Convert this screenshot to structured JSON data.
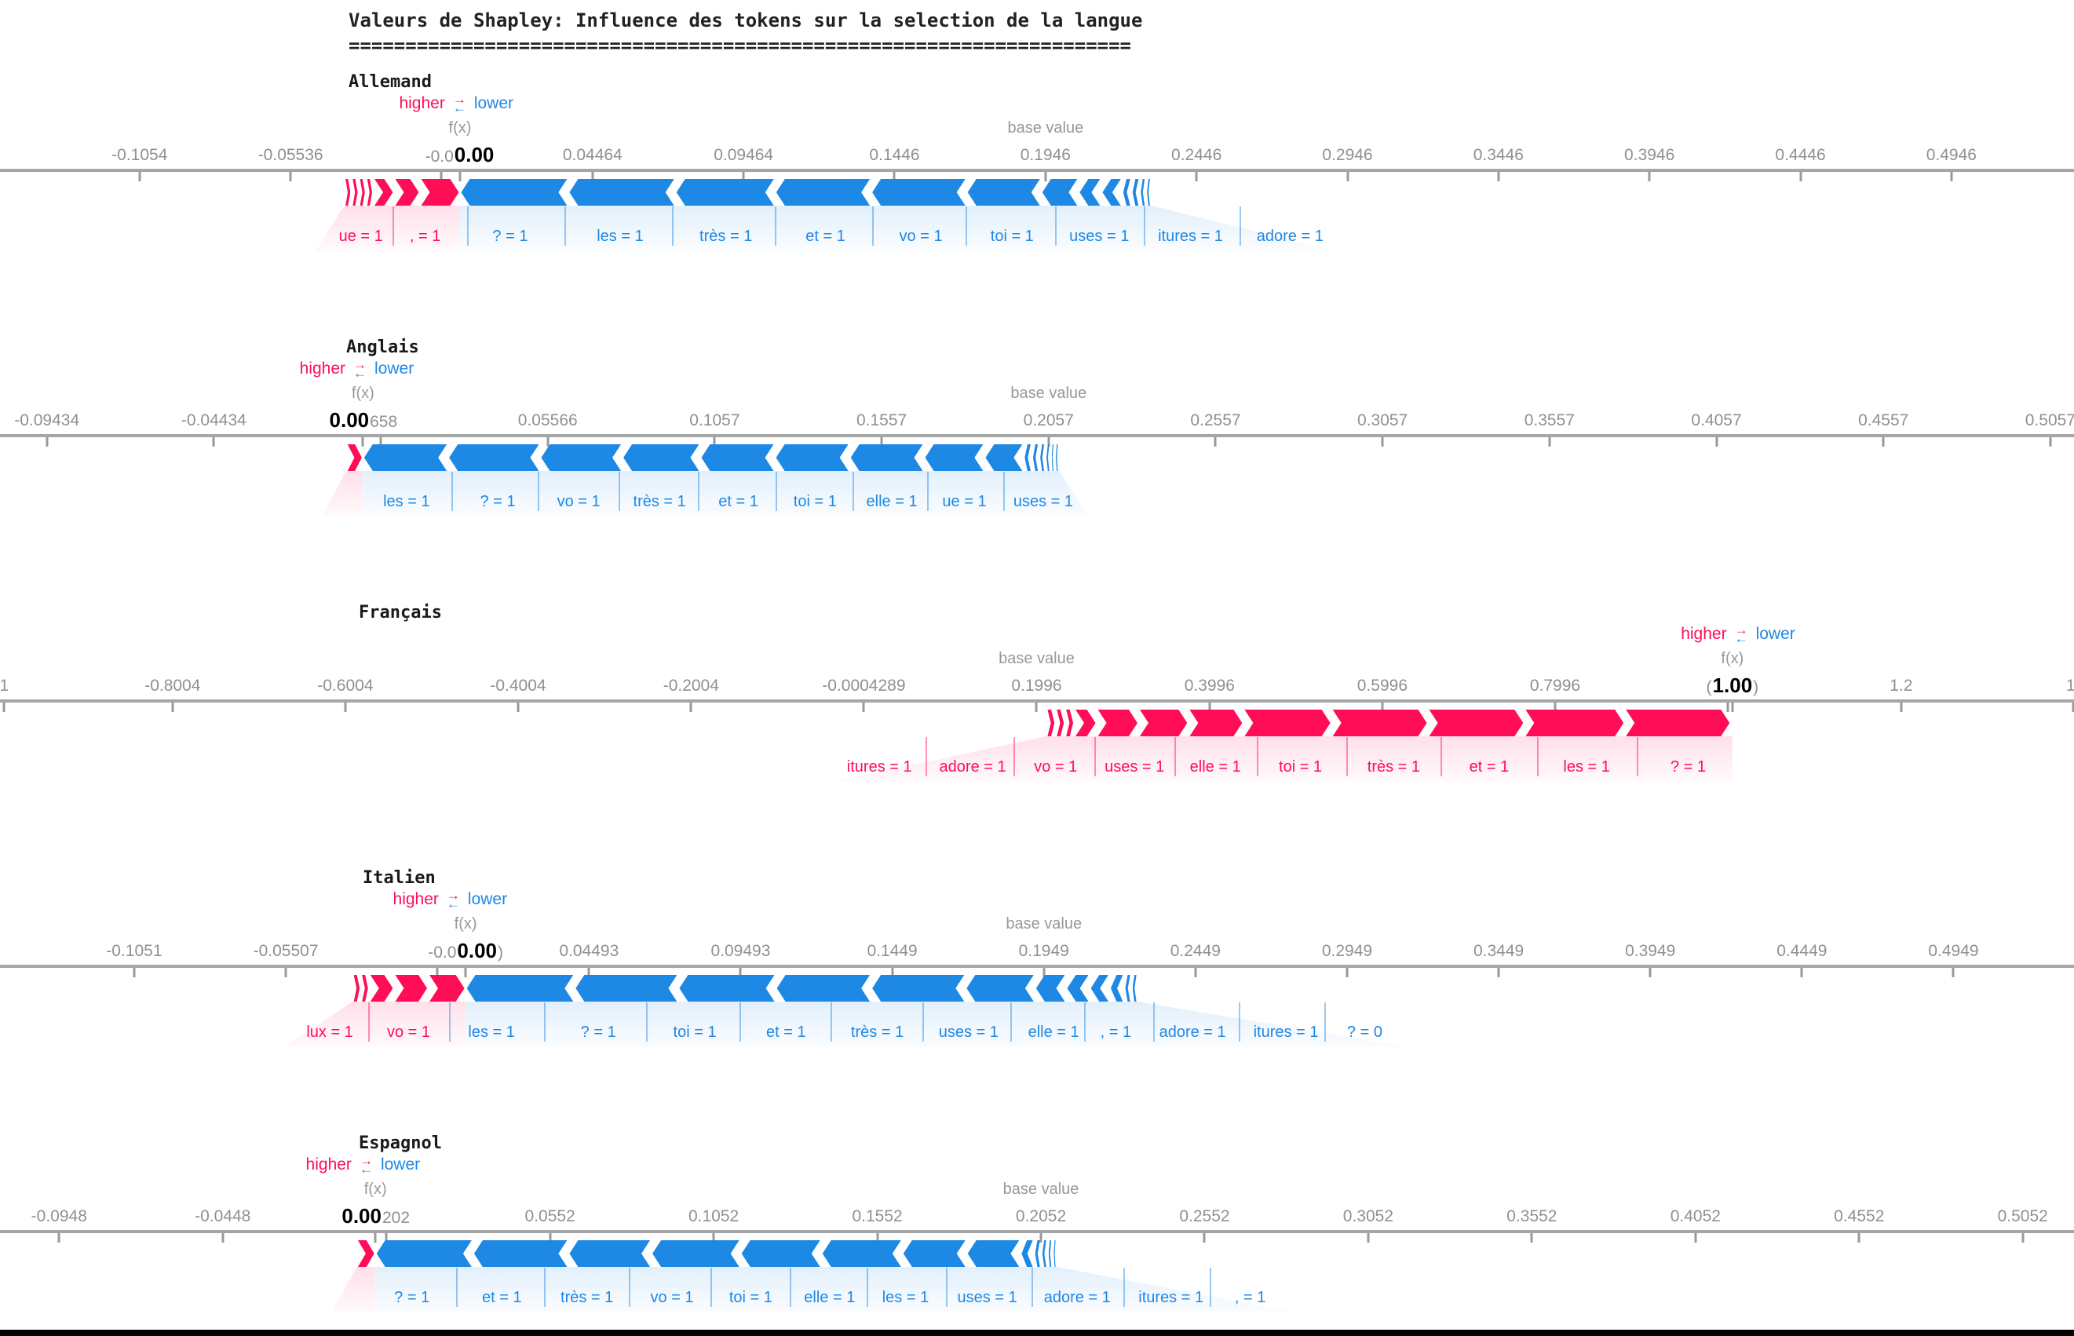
{
  "header": {
    "title": "Valeurs de Shapley: Influence des tokens sur la selection de la langue",
    "underline": "====================================================================="
  },
  "labels": {
    "fx": "f(x)",
    "base_value": "base value"
  },
  "legend": {
    "higher": "higher",
    "lower": "lower"
  },
  "icons": {
    "swap_arrows": {
      "right": "→",
      "left": "←"
    }
  },
  "colors": {
    "pink": "#ff0d57",
    "blue": "#1e88e5",
    "axis": "#a6a6a6",
    "tick_text": "#909090"
  },
  "chart_data": [
    {
      "type": "force-plot",
      "title": "Allemand",
      "legend_pos": 0.22,
      "fx": {
        "pos": 0.2218,
        "left": "-0.0",
        "bold": "0.00",
        "right": ""
      },
      "base_pos": 0.5041,
      "ticks": [
        {
          "pos": 0.0673,
          "label": "-0.1054"
        },
        {
          "pos": 0.1401,
          "label": "-0.05536"
        },
        {
          "pos": 0.2129,
          "label": ""
        },
        {
          "pos": 0.2857,
          "label": "0.04464"
        },
        {
          "pos": 0.3585,
          "label": "0.09464"
        },
        {
          "pos": 0.4313,
          "label": "0.1446"
        },
        {
          "pos": 0.5041,
          "label": "0.1946"
        },
        {
          "pos": 0.5769,
          "label": "0.2446"
        },
        {
          "pos": 0.6497,
          "label": "0.2946"
        },
        {
          "pos": 0.7225,
          "label": "0.3446"
        },
        {
          "pos": 0.7953,
          "label": "0.3946"
        },
        {
          "pos": 0.8681,
          "label": "0.4446"
        },
        {
          "pos": 0.9409,
          "label": "0.4946"
        }
      ],
      "pink_bounds": [
        0.166,
        0.1695,
        0.173,
        0.1765,
        0.18,
        0.19,
        0.2025,
        0.2218
      ],
      "blue_bounds": [
        0.2218,
        0.274,
        0.3256,
        0.3737,
        0.42,
        0.466,
        0.502,
        0.52,
        0.531,
        0.541,
        0.5455,
        0.5495,
        0.5525,
        0.555
      ],
      "feature_labels": [
        {
          "text": "ue = 1",
          "pos": 0.174,
          "color": "pink"
        },
        {
          "text": ", = 1",
          "pos": 0.205,
          "color": "pink"
        },
        {
          "text": "? = 1",
          "pos": 0.246,
          "color": "blue"
        },
        {
          "text": "les = 1",
          "pos": 0.299,
          "color": "blue"
        },
        {
          "text": "très = 1",
          "pos": 0.35,
          "color": "blue"
        },
        {
          "text": "et = 1",
          "pos": 0.398,
          "color": "blue"
        },
        {
          "text": "vo = 1",
          "pos": 0.444,
          "color": "blue"
        },
        {
          "text": "toi = 1",
          "pos": 0.488,
          "color": "blue"
        },
        {
          "text": "uses = 1",
          "pos": 0.53,
          "color": "blue"
        },
        {
          "text": "itures = 1",
          "pos": 0.574,
          "color": "blue"
        },
        {
          "text": "adore = 1",
          "pos": 0.622,
          "color": "blue"
        }
      ]
    },
    {
      "type": "force-plot",
      "title": "Anglais",
      "legend_pos": 0.172,
      "fx": {
        "pos": 0.175,
        "left": "",
        "bold": "0.00",
        "right": "658"
      },
      "base_pos": 0.5056,
      "ticks": [
        {
          "pos": 0.0226,
          "label": "-0.09434"
        },
        {
          "pos": 0.1031,
          "label": "-0.04434"
        },
        {
          "pos": 0.1836,
          "label": ""
        },
        {
          "pos": 0.2641,
          "label": "0.05566"
        },
        {
          "pos": 0.3446,
          "label": "0.1057"
        },
        {
          "pos": 0.4251,
          "label": "0.1557"
        },
        {
          "pos": 0.5056,
          "label": "0.2057"
        },
        {
          "pos": 0.5861,
          "label": "0.2557"
        },
        {
          "pos": 0.6666,
          "label": "0.3057"
        },
        {
          "pos": 0.7471,
          "label": "0.3557"
        },
        {
          "pos": 0.8276,
          "label": "0.4057"
        },
        {
          "pos": 0.9081,
          "label": "0.4557"
        },
        {
          "pos": 0.9886,
          "label": "0.5057"
        }
      ],
      "pink_bounds": [
        0.167,
        0.175
      ],
      "blue_bounds": [
        0.175,
        0.216,
        0.2604,
        0.3,
        0.3376,
        0.3736,
        0.4096,
        0.4455,
        0.4746,
        0.4935,
        0.4975,
        0.501,
        0.504,
        0.5065,
        0.5085,
        0.5106
      ],
      "feature_labels": [
        {
          "text": "les = 1",
          "pos": 0.196,
          "color": "blue"
        },
        {
          "text": "? = 1",
          "pos": 0.24,
          "color": "blue"
        },
        {
          "text": "vo = 1",
          "pos": 0.279,
          "color": "blue"
        },
        {
          "text": "très = 1",
          "pos": 0.318,
          "color": "blue"
        },
        {
          "text": "et = 1",
          "pos": 0.356,
          "color": "blue"
        },
        {
          "text": "toi = 1",
          "pos": 0.393,
          "color": "blue"
        },
        {
          "text": "elle = 1",
          "pos": 0.43,
          "color": "blue"
        },
        {
          "text": "ue = 1",
          "pos": 0.465,
          "color": "blue"
        },
        {
          "text": "uses = 1",
          "pos": 0.503,
          "color": "blue"
        }
      ]
    },
    {
      "type": "force-plot",
      "title": "Français",
      "legend_pos": 0.838,
      "fx": {
        "pos": 0.8353,
        "left": "(",
        "bold": "1.00",
        "right": ")"
      },
      "base_pos": 0.4998,
      "ticks": [
        {
          "pos": 0.002,
          "label": "1"
        },
        {
          "pos": 0.0832,
          "label": "-0.8004"
        },
        {
          "pos": 0.1665,
          "label": "-0.6004"
        },
        {
          "pos": 0.2498,
          "label": "-0.4004"
        },
        {
          "pos": 0.3332,
          "label": "-0.2004"
        },
        {
          "pos": 0.4165,
          "label": "-0.0004289"
        },
        {
          "pos": 0.4998,
          "label": "0.1996"
        },
        {
          "pos": 0.5832,
          "label": "0.3996"
        },
        {
          "pos": 0.6665,
          "label": "0.5996"
        },
        {
          "pos": 0.7498,
          "label": "0.7996"
        },
        {
          "pos": 0.8332,
          "label": ""
        },
        {
          "pos": 0.9167,
          "label": "1.2"
        },
        {
          "pos": 0.9995,
          "label": "1."
        }
      ],
      "pink_bounds": [
        0.5045,
        0.509,
        0.5135,
        0.518,
        0.5288,
        0.549,
        0.573,
        0.5995,
        0.642,
        0.6885,
        0.735,
        0.7834,
        0.8345
      ],
      "blue_bounds": [],
      "feature_labels": [
        {
          "text": "itures = 1",
          "pos": 0.424,
          "color": "pink"
        },
        {
          "text": "adore = 1",
          "pos": 0.469,
          "color": "pink"
        },
        {
          "text": "vo = 1",
          "pos": 0.509,
          "color": "pink"
        },
        {
          "text": "uses = 1",
          "pos": 0.547,
          "color": "pink"
        },
        {
          "text": "elle = 1",
          "pos": 0.586,
          "color": "pink"
        },
        {
          "text": "toi = 1",
          "pos": 0.627,
          "color": "pink"
        },
        {
          "text": "très = 1",
          "pos": 0.672,
          "color": "pink"
        },
        {
          "text": "et = 1",
          "pos": 0.718,
          "color": "pink"
        },
        {
          "text": "les = 1",
          "pos": 0.765,
          "color": "pink"
        },
        {
          "text": "? = 1",
          "pos": 0.814,
          "color": "pink"
        }
      ]
    },
    {
      "type": "force-plot",
      "title": "Italien",
      "legend_pos": 0.217,
      "fx": {
        "pos": 0.2245,
        "left": "-0.0",
        "bold": "0.00",
        "right": ")"
      },
      "base_pos": 0.5033,
      "ticks": [
        {
          "pos": 0.0647,
          "label": "-0.1051"
        },
        {
          "pos": 0.1378,
          "label": "-0.05507"
        },
        {
          "pos": 0.2109,
          "label": ""
        },
        {
          "pos": 0.284,
          "label": "0.04493"
        },
        {
          "pos": 0.3571,
          "label": "0.09493"
        },
        {
          "pos": 0.4302,
          "label": "0.1449"
        },
        {
          "pos": 0.5033,
          "label": "0.1949"
        },
        {
          "pos": 0.5764,
          "label": "0.2449"
        },
        {
          "pos": 0.6495,
          "label": "0.2949"
        },
        {
          "pos": 0.7226,
          "label": "0.3449"
        },
        {
          "pos": 0.7957,
          "label": "0.3949"
        },
        {
          "pos": 0.8688,
          "label": "0.4449"
        },
        {
          "pos": 0.9419,
          "label": "0.4949"
        }
      ],
      "pink_bounds": [
        0.17,
        0.174,
        0.178,
        0.19,
        0.2065,
        0.2245
      ],
      "blue_bounds": [
        0.2245,
        0.277,
        0.327,
        0.374,
        0.42,
        0.4655,
        0.499,
        0.514,
        0.5254,
        0.535,
        0.542,
        0.5455,
        0.5485
      ],
      "feature_labels": [
        {
          "text": "lux = 1",
          "pos": 0.159,
          "color": "pink"
        },
        {
          "text": "vo = 1",
          "pos": 0.197,
          "color": "pink"
        },
        {
          "text": "les = 1",
          "pos": 0.237,
          "color": "blue"
        },
        {
          "text": "? = 1",
          "pos": 0.2885,
          "color": "blue"
        },
        {
          "text": "toi = 1",
          "pos": 0.335,
          "color": "blue"
        },
        {
          "text": "et = 1",
          "pos": 0.379,
          "color": "blue"
        },
        {
          "text": "très = 1",
          "pos": 0.423,
          "color": "blue"
        },
        {
          "text": "uses = 1",
          "pos": 0.467,
          "color": "blue"
        },
        {
          "text": "elle = 1",
          "pos": 0.508,
          "color": "blue"
        },
        {
          "text": ", = 1",
          "pos": 0.538,
          "color": "blue"
        },
        {
          "text": "adore = 1",
          "pos": 0.575,
          "color": "blue"
        },
        {
          "text": "itures = 1",
          "pos": 0.62,
          "color": "blue"
        },
        {
          "text": "? = 0",
          "pos": 0.658,
          "color": "blue"
        }
      ]
    },
    {
      "type": "force-plot",
      "title": "Espagnol",
      "legend_pos": 0.175,
      "fx": {
        "pos": 0.181,
        "left": "",
        "bold": "0.00",
        "right": "202"
      },
      "base_pos": 0.5019,
      "ticks": [
        {
          "pos": 0.0285,
          "label": "-0.0948"
        },
        {
          "pos": 0.1074,
          "label": "-0.0448"
        },
        {
          "pos": 0.1863,
          "label": ""
        },
        {
          "pos": 0.2652,
          "label": "0.0552"
        },
        {
          "pos": 0.3441,
          "label": "0.1052"
        },
        {
          "pos": 0.423,
          "label": "0.1552"
        },
        {
          "pos": 0.5019,
          "label": "0.2052"
        },
        {
          "pos": 0.5808,
          "label": "0.2552"
        },
        {
          "pos": 0.6597,
          "label": "0.3052"
        },
        {
          "pos": 0.7386,
          "label": "0.3552"
        },
        {
          "pos": 0.8175,
          "label": "0.4052"
        },
        {
          "pos": 0.8964,
          "label": "0.4552"
        },
        {
          "pos": 0.9753,
          "label": "0.5052"
        }
      ],
      "pink_bounds": [
        0.172,
        0.181
      ],
      "blue_bounds": [
        0.181,
        0.228,
        0.274,
        0.314,
        0.357,
        0.396,
        0.435,
        0.466,
        0.492,
        0.4985,
        0.502,
        0.505,
        0.5075,
        0.5095
      ],
      "feature_labels": [
        {
          "text": "? = 1",
          "pos": 0.1986,
          "color": "blue"
        },
        {
          "text": "et = 1",
          "pos": 0.242,
          "color": "blue"
        },
        {
          "text": "très = 1",
          "pos": 0.283,
          "color": "blue"
        },
        {
          "text": "vo = 1",
          "pos": 0.324,
          "color": "blue"
        },
        {
          "text": "toi = 1",
          "pos": 0.362,
          "color": "blue"
        },
        {
          "text": "elle = 1",
          "pos": 0.4,
          "color": "blue"
        },
        {
          "text": "les = 1",
          "pos": 0.4366,
          "color": "blue"
        },
        {
          "text": "uses = 1",
          "pos": 0.476,
          "color": "blue"
        },
        {
          "text": "adore = 1",
          "pos": 0.5194,
          "color": "blue"
        },
        {
          "text": "itures = 1",
          "pos": 0.5646,
          "color": "blue"
        },
        {
          "text": ", = 1",
          "pos": 0.6028,
          "color": "blue"
        }
      ]
    }
  ]
}
